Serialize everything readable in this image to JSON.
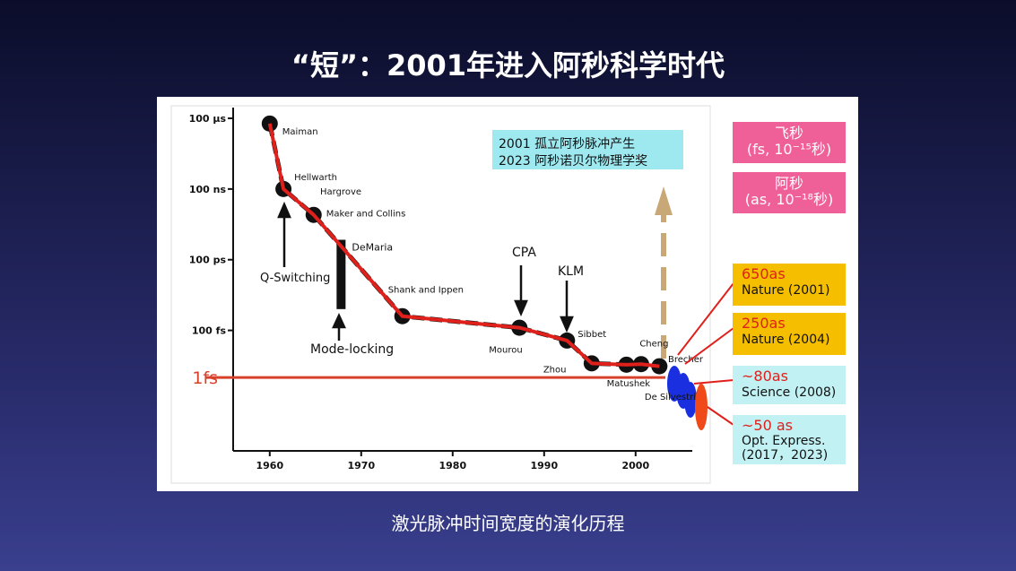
{
  "title": "“短”：2001年进入阿秒科学时代",
  "caption": "激光脉冲时间宽度的演化历程",
  "side_boxes": [
    {
      "lines": [
        "飞秒",
        "(fs, 10⁻¹⁵秒)"
      ],
      "color": "#ef5f98"
    },
    {
      "lines": [
        "阿秒",
        "(as, 10⁻¹⁸秒)"
      ],
      "color": "#ef5f98"
    },
    {
      "lines": [
        "650as",
        "Nature (2001)"
      ],
      "color": "#f5bf00"
    },
    {
      "lines": [
        "250as",
        "Nature (2004)"
      ],
      "color": "#f5bf00"
    },
    {
      "lines": [
        "~80as",
        "Science (2008)"
      ],
      "color": "#c2f1f4"
    },
    {
      "lines": [
        "~50 as",
        "Opt. Express.",
        "(2017，2023)"
      ],
      "color": "#c2f1f4"
    }
  ],
  "chart_data": {
    "type": "scatter",
    "y_scale": "log",
    "xlim": [
      1956,
      2006
    ],
    "xticks": [
      1960,
      1970,
      1980,
      1990,
      2000
    ],
    "ylim": [
      1e-18,
      0.0001
    ],
    "yticks": [
      {
        "value": 0.0001,
        "label": "100 μs"
      },
      {
        "value": 1e-07,
        "label": "100 ns"
      },
      {
        "value": 1e-10,
        "label": "100 ps"
      },
      {
        "value": 1e-13,
        "label": "100 fs"
      },
      {
        "value": 1e-15,
        "label": "1fs"
      }
    ],
    "highlight_tick_color": "#d9402a",
    "series": [
      {
        "color": "#111111",
        "trend_color": "#e0201b",
        "x": [
          1960,
          1961.5,
          1964.8,
          1974.5,
          1987.3,
          1992.5,
          1995.2,
          1999,
          2000.6,
          2002.6
        ],
        "values": [
          6e-05,
          1e-07,
          8e-09,
          4e-13,
          1.3e-13,
          3.7e-14,
          4e-15,
          3.5e-15,
          3.7e-15,
          3e-15
        ],
        "labels": [
          "Maiman",
          "Hellwarth",
          "Maker and Collins",
          "Shank and Ippen",
          "Mourou",
          "Sibbet",
          "Zhou",
          "Matushek",
          "De Silvestri",
          "Cheng"
        ]
      }
    ],
    "range_bar": {
      "label": "DeMaria",
      "x": 1967.8,
      "low": 8e-13,
      "high": 7e-10
    },
    "arrow_labels": [
      "Q-Switching",
      "Mode-locking",
      "CPA",
      "KLM"
    ],
    "extra_labels": [
      "Hargrove",
      "Brecher"
    ],
    "note": [
      "2001 孤立阿秒脉冲产生",
      "2023 阿秒诺贝尔物理学奖"
    ]
  }
}
